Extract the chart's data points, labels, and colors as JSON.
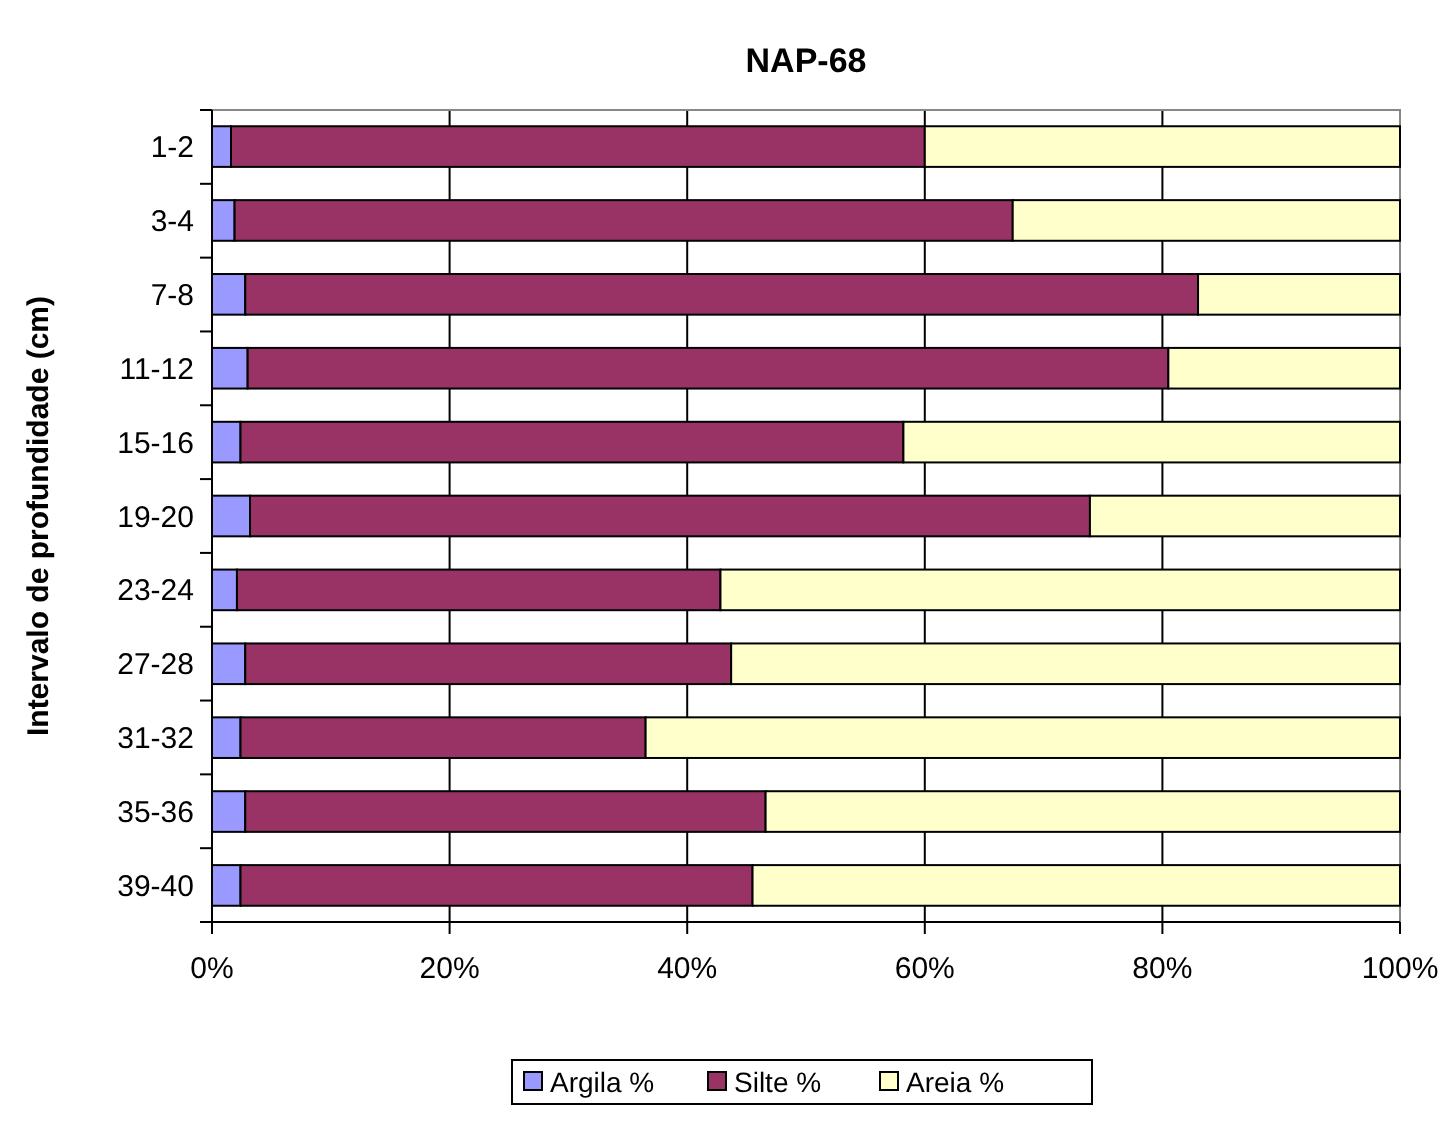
{
  "chart_data": {
    "type": "bar",
    "orientation": "horizontal",
    "stacked": true,
    "title": "NAP-68",
    "ylabel": "Intervalo de profundidade (cm)",
    "categories": [
      "1-2",
      "3-4",
      "7-8",
      "11-12",
      "15-16",
      "19-20",
      "23-24",
      "27-28",
      "31-32",
      "35-36",
      "39-40"
    ],
    "series": [
      {
        "name": "Argila %",
        "color": "#9999ff",
        "values": [
          1.6,
          1.9,
          2.8,
          3.0,
          2.4,
          3.2,
          2.1,
          2.8,
          2.4,
          2.8,
          2.4
        ]
      },
      {
        "name": "Silte %",
        "color": "#993366",
        "values": [
          58.4,
          65.5,
          80.2,
          77.5,
          55.8,
          70.7,
          40.7,
          40.9,
          34.1,
          43.8,
          43.1
        ]
      },
      {
        "name": "Areia %",
        "color": "#ffffcc",
        "values": [
          40.0,
          32.6,
          17.0,
          19.5,
          41.8,
          26.1,
          57.2,
          56.3,
          63.5,
          53.4,
          54.5
        ]
      }
    ],
    "xlim": [
      0,
      100
    ],
    "xticks": [
      {
        "value": 0,
        "label": "0%"
      },
      {
        "value": 20,
        "label": "20%"
      },
      {
        "value": 40,
        "label": "40%"
      },
      {
        "value": 60,
        "label": "60%"
      },
      {
        "value": 80,
        "label": "80%"
      },
      {
        "value": 100,
        "label": "100%"
      }
    ],
    "grid": "x",
    "legend": "bottom"
  }
}
